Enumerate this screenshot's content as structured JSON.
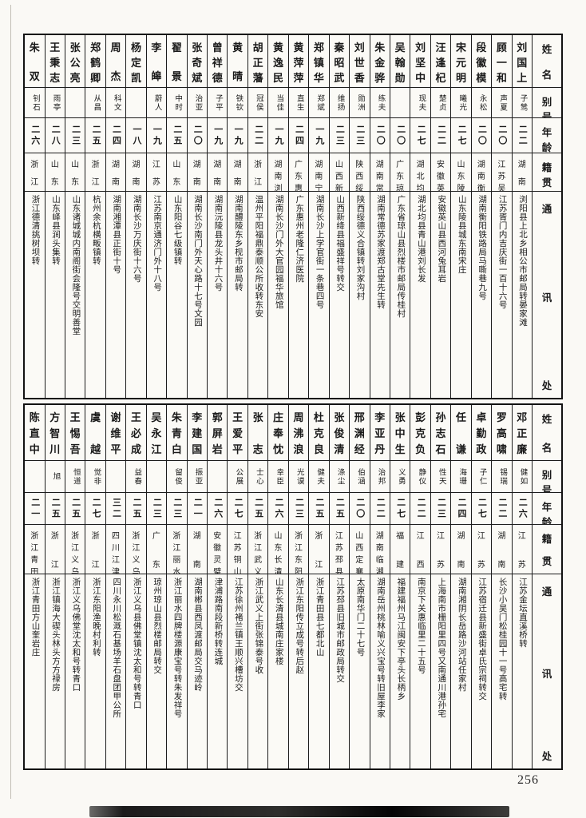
{
  "page_number": "256",
  "headers": {
    "name": "姓名",
    "alias": "别号",
    "age": "年龄",
    "native": "籍贯",
    "address": "通讯处"
  },
  "sections": [
    {
      "people": [
        {
          "name": "刘国上",
          "alias": "子鸶",
          "age": "二二",
          "native": "湖南",
          "address": "浏阳县上北乡相公市邮局转晏家滩"
        },
        {
          "name": "顾一和",
          "alias": "声夏",
          "age": "二〇",
          "native": "江苏吴县",
          "address": "江苏胥门内吉庆街一百十六号"
        },
        {
          "name": "段徽模",
          "alias": "永松",
          "age": "二〇",
          "native": "湖南衡阳",
          "address": "湖南衡阳铁路局马嘶巷九号"
        },
        {
          "name": "宋元明",
          "alias": "曦光",
          "age": "二七",
          "native": "山东陵县",
          "address": "山东陵县城东南宋庄"
        },
        {
          "name": "汪逢杞",
          "alias": "楚贞",
          "age": "二二",
          "native": "安徽英山",
          "address": "安徽英山县西河兔耳岩"
        },
        {
          "name": "刘坚中",
          "alias": "现夫",
          "age": "二七",
          "native": "湖北均县",
          "address": "湖北均县青山港刘长发"
        },
        {
          "name": "吴翰勋",
          "alias": "",
          "age": "二〇",
          "native": "广东琼山",
          "address": "广东省琼山县烈楼市邮局传桂村"
        },
        {
          "name": "朱金骅",
          "alias": "练夫",
          "age": "二〇",
          "native": "湖南常德",
          "address": "湖南常德苏家渡郑古堂先生转"
        },
        {
          "name": "刘世香",
          "alias": "勋洲",
          "age": "二三",
          "native": "陕西绥德",
          "address": "陕西绥德义合镇转刘家沟村"
        },
        {
          "name": "秦昭武",
          "alias": "维扬",
          "age": "二三",
          "native": "山西新绛",
          "address": "山西新绛县福盛祥号转交"
        },
        {
          "name": "郑镇华",
          "alias": "郑斌",
          "age": "一九",
          "native": "湖南宁远",
          "address": "湖南长沙上学官街一条巷四号"
        },
        {
          "name": "黄萍萍",
          "alias": "直生",
          "age": "二四",
          "native": "广东惠州",
          "address": "广东惠州老隆仁济医院"
        },
        {
          "name": "黄逸民",
          "alias": "当佳",
          "age": "一九",
          "native": "湖南浏阳",
          "address": "湖南长沙门外大官园福华旅馆"
        },
        {
          "name": "胡正藩",
          "alias": "冠侯",
          "age": "二二",
          "native": "浙江",
          "address": "温州平阳福鼎泰顺公所收转东安"
        },
        {
          "name": "黄晴",
          "alias": "铁钦",
          "age": "一九",
          "native": "湖南",
          "address": "湖南醴陵东乡枧市邮局转"
        },
        {
          "name": "曾祥德",
          "alias": "子平",
          "age": "一九",
          "native": "湖南",
          "address": "湖南沅陵县龙头井十六号"
        },
        {
          "name": "张奇斌",
          "alias": "治亚",
          "age": "二〇",
          "native": "湖南",
          "address": "湖南长沙南门外天心路十七号文园"
        },
        {
          "name": "翟景",
          "alias": "中时",
          "age": "二五",
          "native": "山东",
          "address": "山东阳谷七级镇转"
        },
        {
          "name": "李皞",
          "alias": "蔚人",
          "age": "一九",
          "native": "江苏",
          "address": "江苏南京通济门外十八号"
        },
        {
          "name": "杨定凯",
          "alias": "",
          "age": "一八",
          "native": "湖南",
          "address": "湖南长沙万庆街十六号"
        },
        {
          "name": "周杰",
          "alias": "科文",
          "age": "二四",
          "native": "湖南",
          "address": "湖南湘潭县正街十号"
        },
        {
          "name": "郑鹤卿",
          "alias": "从昌",
          "age": "二五",
          "native": "浙江",
          "address": "杭州余杭横畈镇转"
        },
        {
          "name": "张公亮",
          "alias": "",
          "age": "二三",
          "native": "山东",
          "address": "山东诸城城内南阁街会隆号交明善堂"
        },
        {
          "name": "王秉志",
          "alias": "雨亭",
          "age": "二八",
          "native": "山东",
          "address": "山东峄县涧头集转"
        },
        {
          "name": "朱双",
          "alias": "钊石",
          "age": "二六",
          "native": "浙江",
          "address": "浙江德清挑树坝转"
        }
      ]
    },
    {
      "people": [
        {
          "name": "邓正廉",
          "alias": "健如",
          "age": "二六",
          "native": "江苏",
          "address": "江苏金坛直溪桥转"
        },
        {
          "name": "罗高啸",
          "alias": "锡瑞",
          "age": "二二",
          "native": "湖南",
          "address": "长沙小吴门松桂园十一号高宅转"
        },
        {
          "name": "卓勤政",
          "alias": "子仁",
          "age": "二七",
          "native": "江苏",
          "address": "江苏宿迁县新盛街卓氏宗祠转交"
        },
        {
          "name": "任谦",
          "alias": "海珊",
          "age": "二四",
          "native": "湖南",
          "address": "湖南湘阴长岳路沙河站任家村"
        },
        {
          "name": "孙志石",
          "alias": "性天",
          "age": "二三",
          "native": "江苏",
          "address": "上海南市栅阳里四号又南通川港孙宅"
        },
        {
          "name": "彭克负",
          "alias": "静仪",
          "age": "二二",
          "native": "江西",
          "address": "南京下关惠临里二十五号"
        },
        {
          "name": "张中生",
          "alias": "义勇",
          "age": "二七",
          "native": "福建",
          "address": "福建福州马江闽安下亭头长柄乡"
        },
        {
          "name": "李亚丹",
          "alias": "治邦",
          "age": "二二",
          "native": "湖南临湘",
          "address": "湖南岳州桃林喻义兴宝号转旧屋李家"
        },
        {
          "name": "邢渊经",
          "alias": "伯涵",
          "age": "二〇",
          "native": "山西定襄",
          "address": "太原南华门二十七号"
        },
        {
          "name": "张俊清",
          "alias": "涤尘",
          "age": "二五",
          "native": "江苏邳县",
          "address": "江苏邳县旧城市邮政局转交"
        },
        {
          "name": "杜克良",
          "alias": "健夫",
          "age": "二五",
          "native": "浙江",
          "address": "浙江青田县七都北山"
        },
        {
          "name": "周沸浪",
          "alias": "光谟",
          "age": "二三",
          "native": "浙江东阳",
          "address": "浙江东阳传立成号转后赵"
        },
        {
          "name": "庄奉忱",
          "alias": "幸臣",
          "age": "二六",
          "native": "山东长清",
          "address": "山东长清县城南庄家楼"
        },
        {
          "name": "张志",
          "alias": "士心",
          "age": "二五",
          "native": "浙江武义",
          "address": "浙江武义上街张锦泰号收"
        },
        {
          "name": "王爱平",
          "alias": "公展",
          "age": "二七",
          "native": "江苏铜山",
          "address": "江苏徐州褚兰镇王顺兴槽坊交"
        },
        {
          "name": "郭屏岩",
          "alias": "",
          "age": "二六",
          "native": "安徽灵璧",
          "address": "津浦路南段新桥转连城"
        },
        {
          "name": "李建国",
          "alias": "振亚",
          "age": "二一",
          "native": "湖南",
          "address": "湖南郴县西凤渡邮局交马迹岭"
        },
        {
          "name": "朱青白",
          "alias": "留俊",
          "age": "二三",
          "native": "浙江丽水",
          "address": "浙江丽水四牌楼源康宝号转朱发祥号"
        },
        {
          "name": "吴永江",
          "alias": "",
          "age": "二三",
          "native": "广东",
          "address": "琼州琼山县烈楼邮局转交"
        },
        {
          "name": "王必成",
          "alias": "益春",
          "age": "二五",
          "native": "浙江义乌",
          "address": "浙江义乌县佛堂镇沈太和号转青口"
        },
        {
          "name": "谢维平",
          "alias": "",
          "age": "三二",
          "native": "四川江津",
          "address": "四川永川松溉石基场羊石盘团甲公所"
        },
        {
          "name": "虞越",
          "alias": "觉非",
          "age": "二七",
          "native": "浙江",
          "address": "浙江东阳渔晚村利转"
        },
        {
          "name": "王惕吾",
          "alias": "恒道",
          "age": "二五",
          "native": "浙江义乌",
          "address": "浙江义乌佛堂沈太和号转青口"
        },
        {
          "name": "方智川",
          "alias": "旭",
          "age": "二五",
          "native": "浙江",
          "address": "浙江镇海大碶头林头方方禄房"
        },
        {
          "name": "陈直中",
          "alias": "",
          "age": "二一",
          "native": "浙江青田",
          "address": "浙江青田方山奎岩庄"
        }
      ]
    }
  ]
}
